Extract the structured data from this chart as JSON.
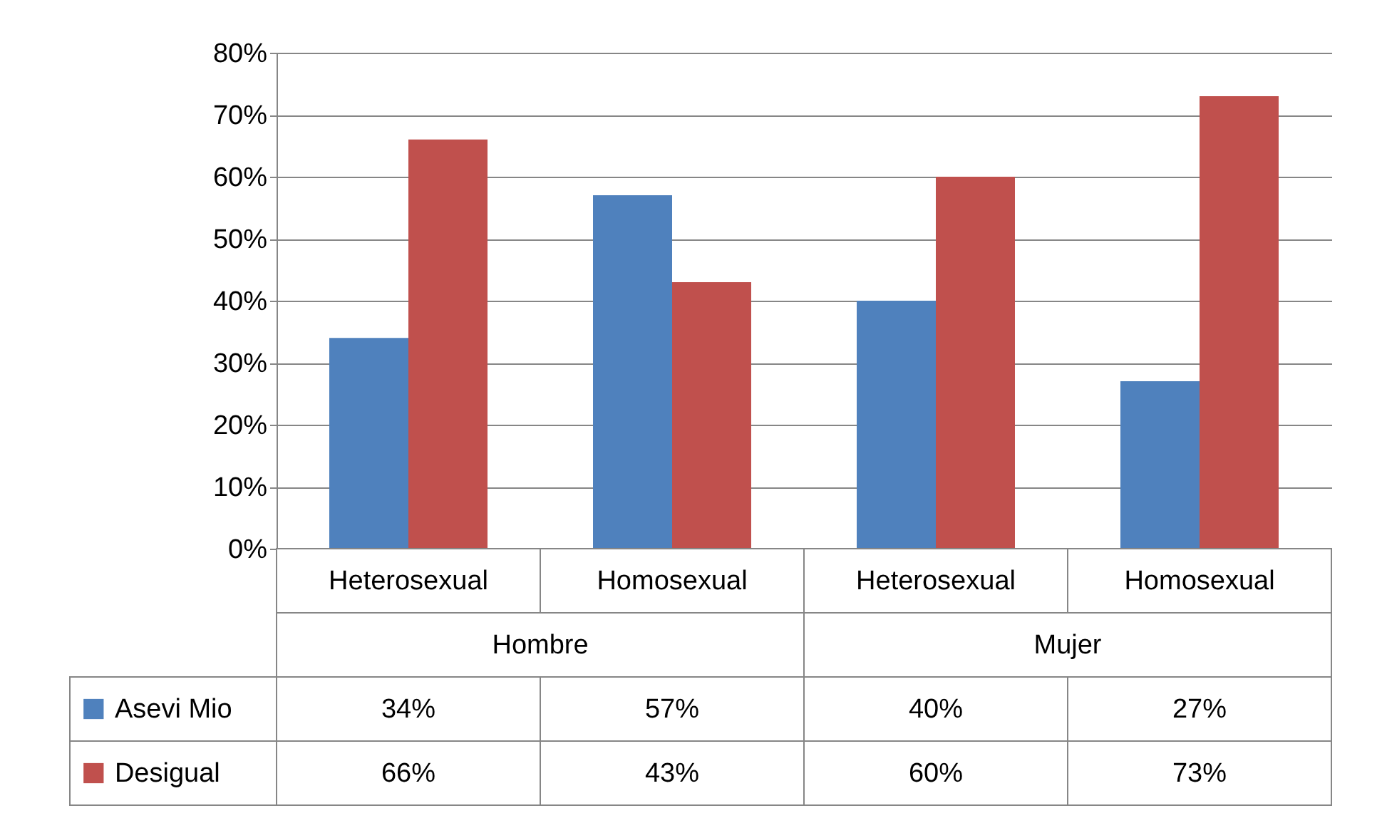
{
  "chart_data": {
    "type": "bar",
    "categories": [
      "Heterosexual",
      "Homosexual",
      "Heterosexual",
      "Homosexual"
    ],
    "annotations": [
      "Hombre",
      "Mujer"
    ],
    "series": [
      {
        "name": "Asevi Mio",
        "color": "#4f81bd",
        "values": [
          34,
          57,
          40,
          27
        ],
        "value_labels": [
          "34%",
          "57%",
          "40%",
          "27%"
        ]
      },
      {
        "name": "Desigual",
        "color": "#c0504d",
        "values": [
          66,
          43,
          60,
          73
        ],
        "value_labels": [
          "66%",
          "43%",
          "60%",
          "73%"
        ]
      }
    ],
    "ylim": [
      0,
      80
    ],
    "yticks": [
      {
        "value": 0,
        "label": "0%"
      },
      {
        "value": 10,
        "label": "10%"
      },
      {
        "value": 20,
        "label": "20%"
      },
      {
        "value": 30,
        "label": "30%"
      },
      {
        "value": 40,
        "label": "40%"
      },
      {
        "value": 50,
        "label": "50%"
      },
      {
        "value": 60,
        "label": "60%"
      },
      {
        "value": 70,
        "label": "70%"
      },
      {
        "value": 80,
        "label": "80%"
      }
    ],
    "grid": "y",
    "legend": "bottom"
  }
}
